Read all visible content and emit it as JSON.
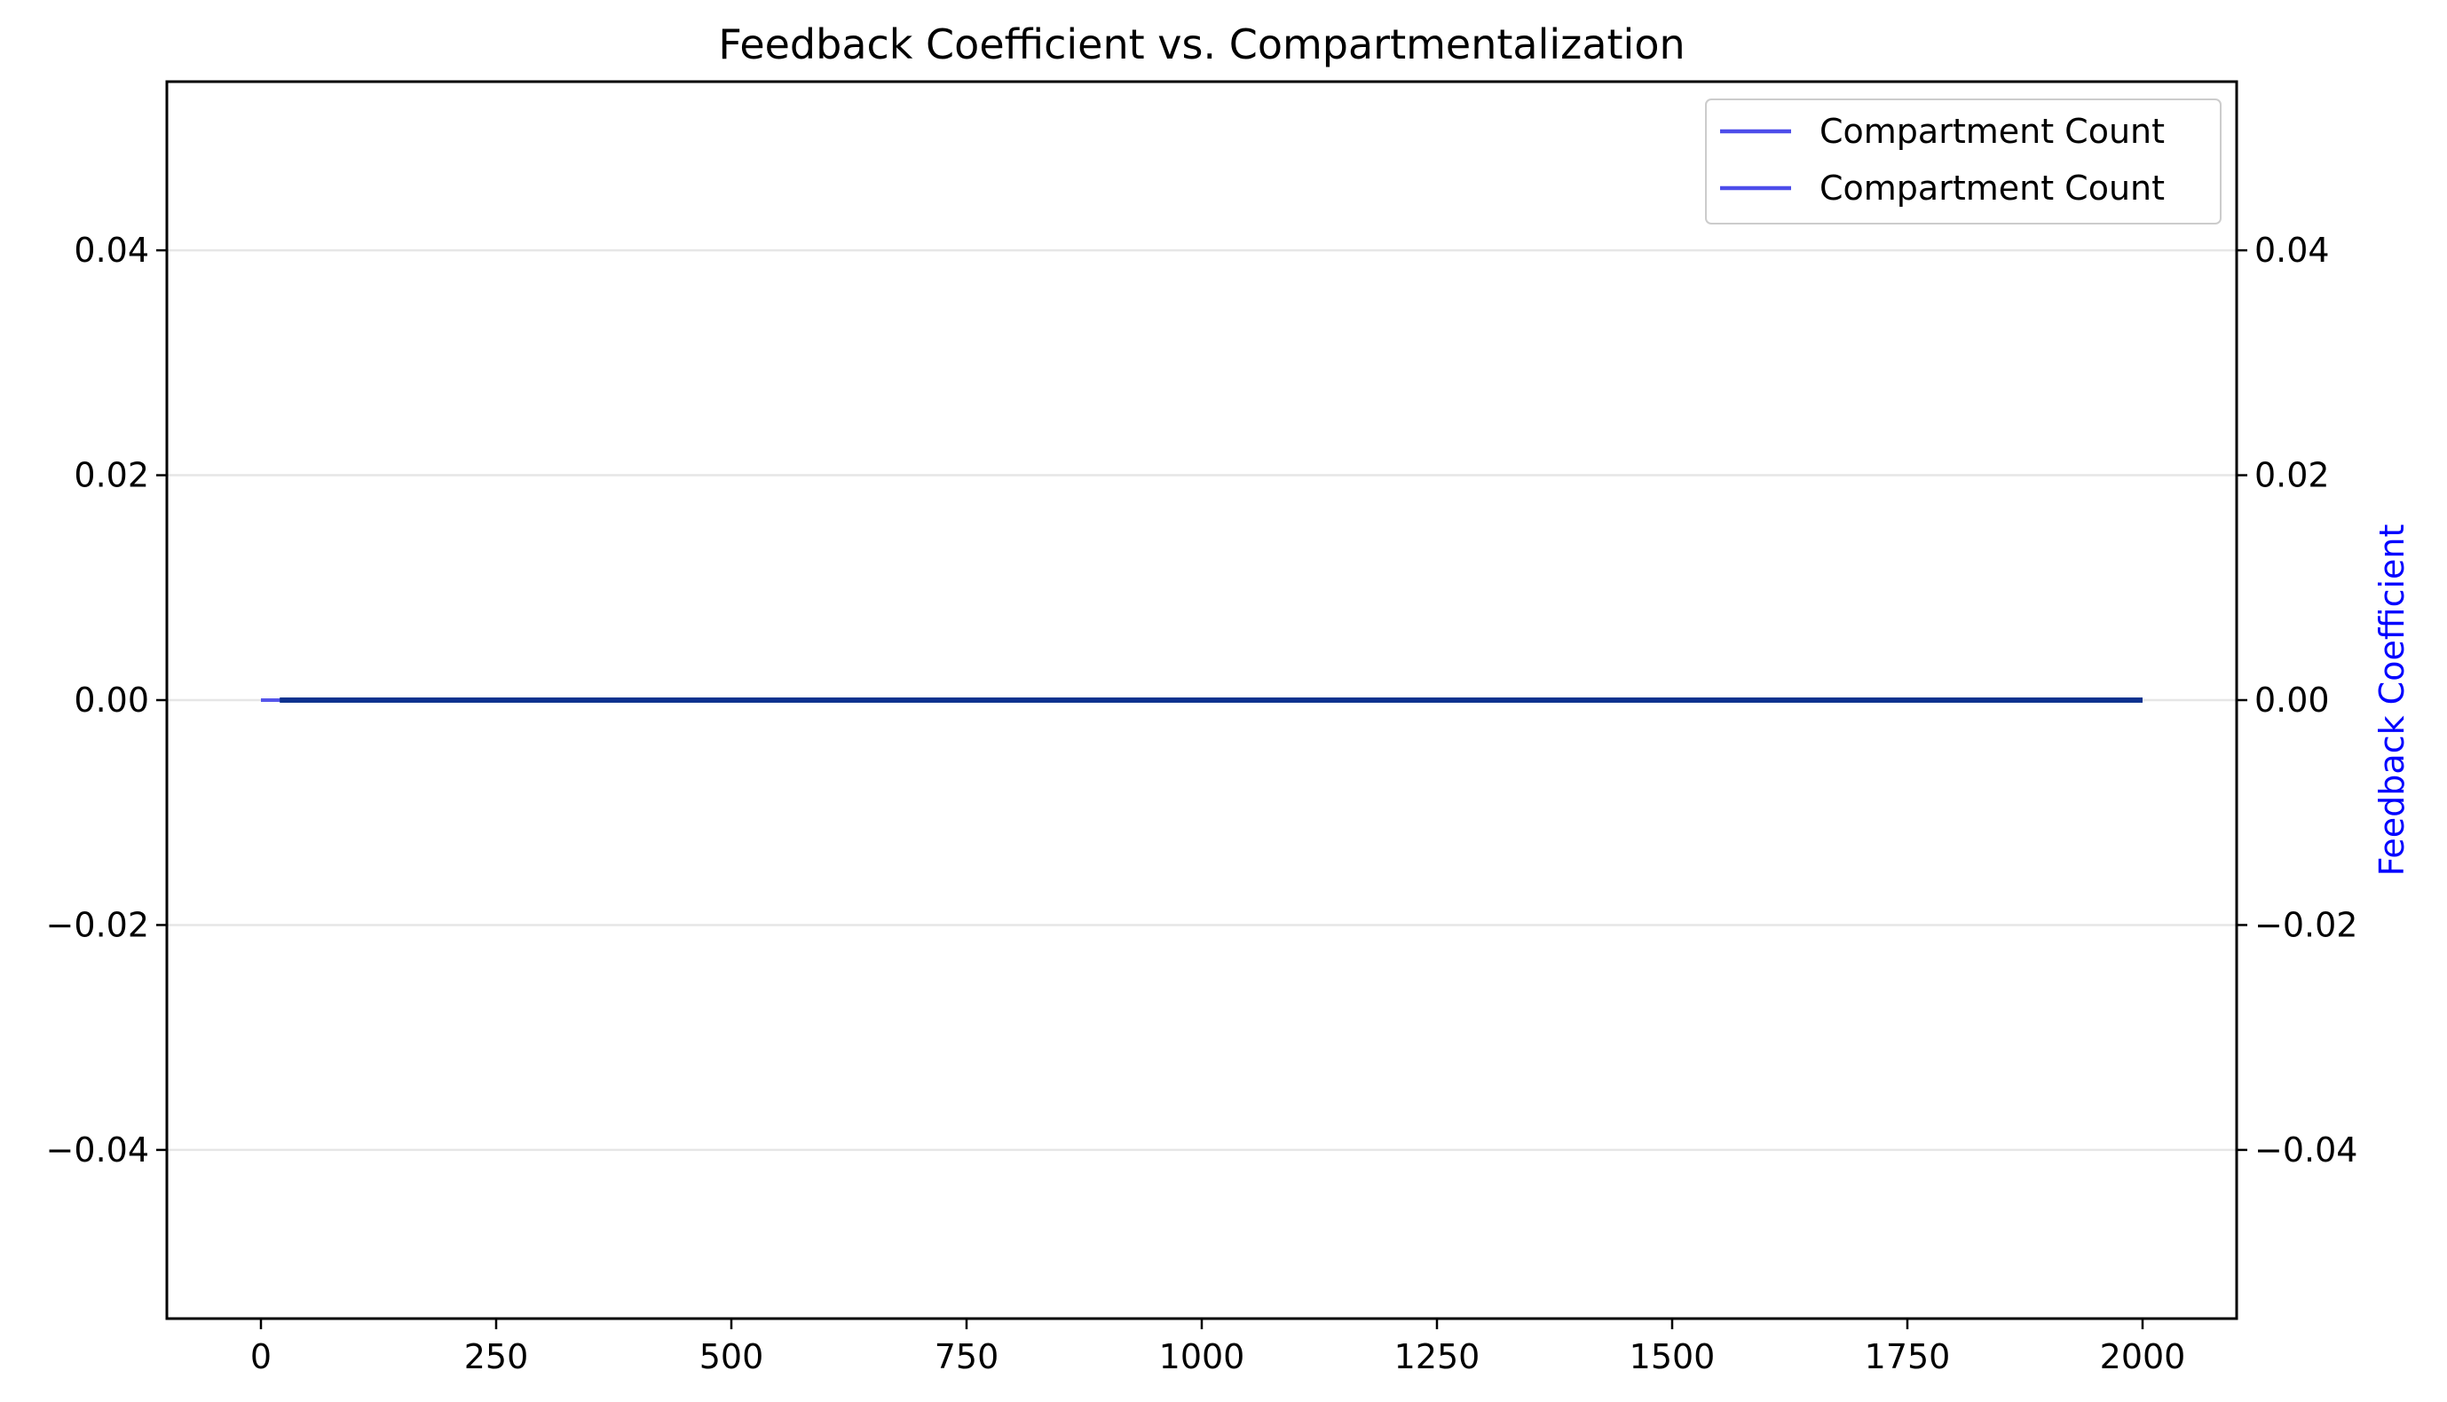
{
  "chart_data": {
    "type": "line",
    "title": "Feedback Coefficient vs. Compartmentalization",
    "xlabel": "",
    "ylabel_left": "",
    "ylabel_right": "Feedback Coefficient",
    "xlim": [
      -100,
      2100
    ],
    "ylim": [
      -0.055,
      0.055
    ],
    "x_ticks": [
      0,
      250,
      500,
      750,
      1000,
      1250,
      1500,
      1750,
      2000
    ],
    "x_tick_labels": [
      "0",
      "250",
      "500",
      "750",
      "1000",
      "1250",
      "1500",
      "1750",
      "2000"
    ],
    "y_ticks": [
      0.04,
      0.02,
      0.0,
      -0.02,
      -0.04
    ],
    "y_tick_labels": [
      "0.04",
      "0.02",
      "0.00",
      "−0.02",
      "−0.04"
    ],
    "grid": "horizontal",
    "legend_placement": "top-right",
    "series": [
      {
        "name": "Compartment Count",
        "axis": "left",
        "color": "#4d4dea",
        "x": [
          0,
          2000
        ],
        "y": [
          0,
          0
        ]
      },
      {
        "name": "Compartment Count",
        "axis": "right",
        "color": "#4d4dea",
        "x": [
          20,
          2000
        ],
        "y": [
          0,
          0
        ]
      }
    ],
    "overlap_color": "#0a2f8a",
    "right_label_color": "#0000ff"
  }
}
